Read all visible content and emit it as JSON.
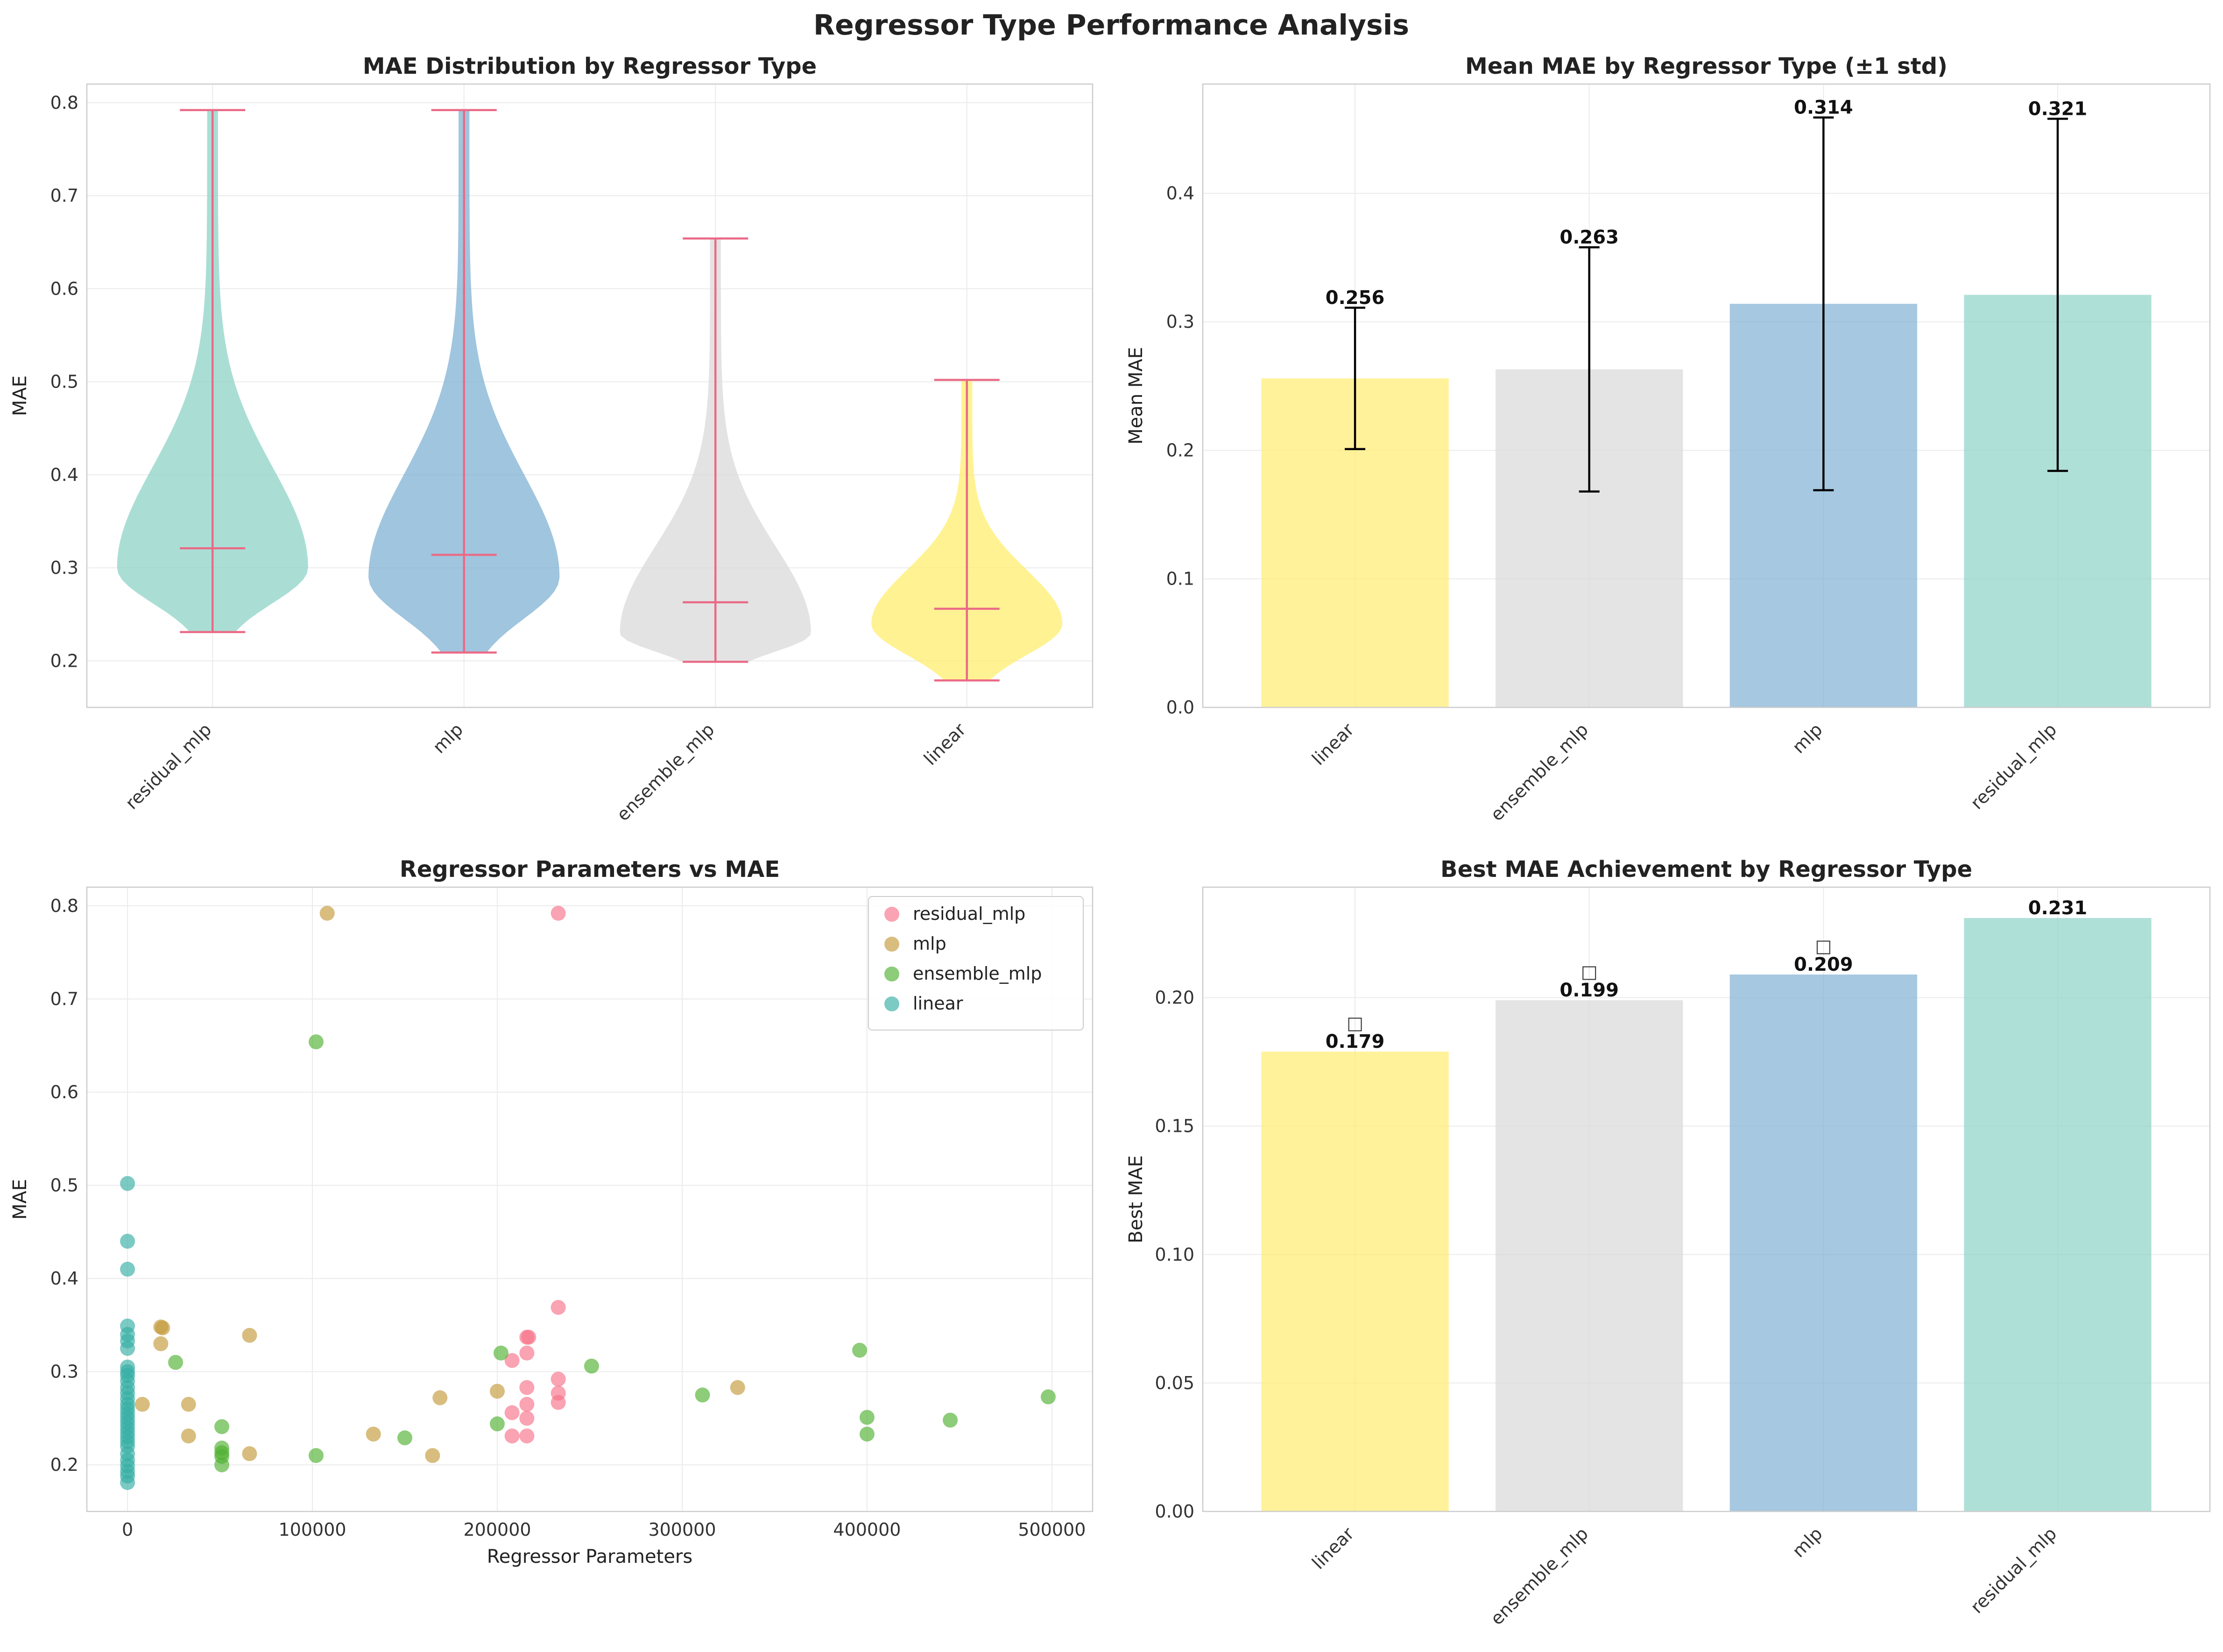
{
  "figure": {
    "title": "Regressor Type Performance Analysis"
  },
  "colors": {
    "residual_mlp": "#8dd3c7",
    "mlp": "#80b1d3",
    "ensemble_mlp": "#d9d9d9",
    "linear": "#ffed6f",
    "violin_lines": "#ea6a86",
    "scatter_residual_mlp": "#f77189",
    "scatter_mlp": "#c39a3a",
    "scatter_ensemble_mlp": "#50b131",
    "scatter_linear": "#36ada4"
  },
  "chart_data": [
    {
      "type": "violin",
      "title": "MAE Distribution by Regressor Type",
      "xlabel": "",
      "ylabel": "MAE",
      "categories": [
        "residual_mlp",
        "mlp",
        "ensemble_mlp",
        "linear"
      ],
      "ylim": [
        0.15,
        0.82
      ],
      "yticks": [
        0.2,
        0.3,
        0.4,
        0.5,
        0.6,
        0.7,
        0.8
      ],
      "grid": true,
      "series": [
        {
          "name": "residual_mlp",
          "min": 0.231,
          "max": 0.792,
          "mean": 0.321,
          "density_peak": 0.3
        },
        {
          "name": "mlp",
          "min": 0.209,
          "max": 0.792,
          "mean": 0.314,
          "density_peak": 0.29
        },
        {
          "name": "ensemble_mlp",
          "min": 0.199,
          "max": 0.654,
          "mean": 0.263,
          "density_peak": 0.23
        },
        {
          "name": "linear",
          "min": 0.179,
          "max": 0.502,
          "mean": 0.256,
          "density_peak": 0.24
        }
      ]
    },
    {
      "type": "bar",
      "title": "Mean MAE by Regressor Type (±1 std)",
      "xlabel": "",
      "ylabel": "Mean MAE",
      "categories": [
        "linear",
        "ensemble_mlp",
        "mlp",
        "residual_mlp"
      ],
      "values": [
        0.256,
        0.263,
        0.314,
        0.321
      ],
      "value_labels": [
        "0.256",
        "0.263",
        "0.314",
        "0.321"
      ],
      "errors": [
        0.055,
        0.095,
        0.145,
        0.137
      ],
      "ylim": [
        0,
        0.485
      ],
      "yticks": [
        0.0,
        0.1,
        0.2,
        0.3,
        0.4
      ],
      "grid": true
    },
    {
      "type": "scatter",
      "title": "Regressor Parameters vs MAE",
      "xlabel": "Regressor Parameters",
      "ylabel": "MAE",
      "xlim": [
        -22000,
        522000
      ],
      "ylim": [
        0.15,
        0.82
      ],
      "xticks": [
        0,
        100000,
        200000,
        300000,
        400000,
        500000
      ],
      "yticks": [
        0.2,
        0.3,
        0.4,
        0.5,
        0.6,
        0.7,
        0.8
      ],
      "grid": true,
      "legend": "top-right",
      "series": [
        {
          "name": "residual_mlp",
          "points": [
            [
              233000,
              0.792
            ],
            [
              233000,
              0.369
            ],
            [
              216000,
              0.337
            ],
            [
              217000,
              0.337
            ],
            [
              216000,
              0.32
            ],
            [
              208000,
              0.312
            ],
            [
              216000,
              0.283
            ],
            [
              233000,
              0.292
            ],
            [
              233000,
              0.277
            ],
            [
              233000,
              0.267
            ],
            [
              216000,
              0.265
            ],
            [
              208000,
              0.256
            ],
            [
              216000,
              0.25
            ],
            [
              208000,
              0.231
            ],
            [
              216000,
              0.231
            ]
          ]
        },
        {
          "name": "mlp",
          "points": [
            [
              108000,
              0.792
            ],
            [
              18000,
              0.348
            ],
            [
              19000,
              0.347
            ],
            [
              18000,
              0.33
            ],
            [
              66000,
              0.339
            ],
            [
              200000,
              0.279
            ],
            [
              330000,
              0.283
            ],
            [
              169000,
              0.272
            ],
            [
              8000,
              0.265
            ],
            [
              33000,
              0.265
            ],
            [
              33000,
              0.231
            ],
            [
              133000,
              0.233
            ],
            [
              66000,
              0.212
            ],
            [
              165000,
              0.21
            ]
          ]
        },
        {
          "name": "ensemble_mlp",
          "points": [
            [
              102000,
              0.654
            ],
            [
              396000,
              0.323
            ],
            [
              202000,
              0.32
            ],
            [
              26000,
              0.31
            ],
            [
              251000,
              0.306
            ],
            [
              311000,
              0.275
            ],
            [
              498000,
              0.273
            ],
            [
              400000,
              0.251
            ],
            [
              445000,
              0.248
            ],
            [
              200000,
              0.244
            ],
            [
              51000,
              0.241
            ],
            [
              400000,
              0.233
            ],
            [
              150000,
              0.229
            ],
            [
              51000,
              0.218
            ],
            [
              51000,
              0.213
            ],
            [
              51000,
              0.209
            ],
            [
              102000,
              0.21
            ],
            [
              51000,
              0.2
            ]
          ]
        },
        {
          "name": "linear",
          "points": [
            [
              0,
              0.502
            ],
            [
              0,
              0.44
            ],
            [
              0,
              0.41
            ],
            [
              0,
              0.349
            ],
            [
              0,
              0.34
            ],
            [
              0,
              0.333
            ],
            [
              0,
              0.325
            ],
            [
              0,
              0.305
            ],
            [
              0,
              0.3
            ],
            [
              0,
              0.296
            ],
            [
              0,
              0.29
            ],
            [
              0,
              0.283
            ],
            [
              0,
              0.277
            ],
            [
              0,
              0.271
            ],
            [
              0,
              0.265
            ],
            [
              0,
              0.26
            ],
            [
              0,
              0.255
            ],
            [
              0,
              0.25
            ],
            [
              0,
              0.245
            ],
            [
              0,
              0.24
            ],
            [
              0,
              0.235
            ],
            [
              0,
              0.23
            ],
            [
              0,
              0.225
            ],
            [
              0,
              0.22
            ],
            [
              0,
              0.212
            ],
            [
              0,
              0.205
            ],
            [
              0,
              0.199
            ],
            [
              0,
              0.193
            ],
            [
              0,
              0.188
            ],
            [
              0,
              0.181
            ]
          ]
        }
      ]
    },
    {
      "type": "bar",
      "title": "Best MAE Achievement by Regressor Type",
      "xlabel": "",
      "ylabel": "Best MAE",
      "categories": [
        "linear",
        "ensemble_mlp",
        "mlp",
        "residual_mlp"
      ],
      "values": [
        0.179,
        0.199,
        0.209,
        0.231
      ],
      "value_labels": [
        "0.179",
        "0.199",
        "0.209",
        "0.231"
      ],
      "markers": [
        "□",
        "□",
        "□",
        ""
      ],
      "ylim": [
        0,
        0.243
      ],
      "yticks": [
        0.0,
        0.05,
        0.1,
        0.15,
        0.2
      ],
      "ytick_labels": [
        "0.00",
        "0.05",
        "0.10",
        "0.15",
        "0.20"
      ],
      "grid": true
    }
  ]
}
